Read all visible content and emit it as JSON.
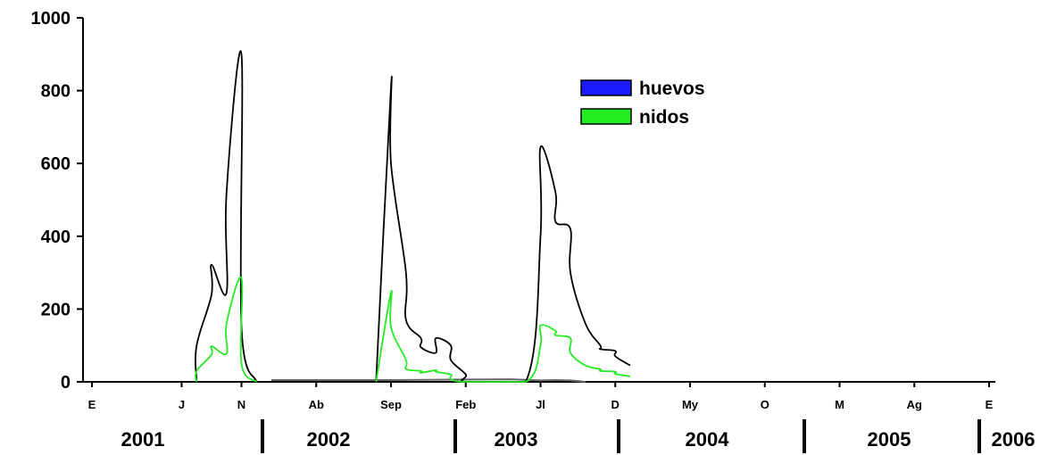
{
  "chart_data": {
    "type": "line",
    "title": "",
    "xlabel": "",
    "ylabel": "",
    "ylim": [
      0,
      1000
    ],
    "yticks": [
      0,
      200,
      400,
      600,
      800,
      1000
    ],
    "month_ticks": [
      {
        "label": "E",
        "date": "2001-01"
      },
      {
        "label": "J",
        "date": "2001-07"
      },
      {
        "label": "N",
        "date": "2001-11"
      },
      {
        "label": "Ab",
        "date": "2002-04"
      },
      {
        "label": "Sep",
        "date": "2002-09"
      },
      {
        "label": "Feb",
        "date": "2003-02"
      },
      {
        "label": "Jl",
        "date": "2003-07"
      },
      {
        "label": "D",
        "date": "2003-12"
      },
      {
        "label": "My",
        "date": "2004-05"
      },
      {
        "label": "O",
        "date": "2004-10"
      },
      {
        "label": "M",
        "date": "2005-03"
      },
      {
        "label": "Ag",
        "date": "2005-08"
      },
      {
        "label": "E",
        "date": "2006-01"
      }
    ],
    "years": [
      "2001",
      "2002",
      "2003",
      "2004",
      "2005",
      "2006"
    ],
    "grid": false,
    "legend_position": "top-center",
    "series": [
      {
        "name": "",
        "color": "#000000",
        "x": [
          "2001-08",
          "2001-08",
          "2001-09",
          "2001-09",
          "2001-10",
          "2001-10",
          "2001-11",
          "2001-11",
          "2001-12",
          "2002-08",
          "2002-09",
          "2002-09",
          "2002-10",
          "2002-10",
          "2002-11",
          "2002-11",
          "2002-12",
          "2002-12",
          "2003-01",
          "2003-01",
          "2003-02",
          "2003-02",
          "2003-06",
          "2003-07",
          "2003-07",
          "2003-08",
          "2003-08",
          "2003-09",
          "2003-09",
          "2003-10",
          "2003-11",
          "2003-11",
          "2003-12",
          "2003-12",
          "2004-01"
        ],
        "y": [
          0,
          100,
          240,
          322,
          245,
          520,
          900,
          150,
          0,
          0,
          810,
          600,
          300,
          170,
          120,
          95,
          80,
          120,
          100,
          60,
          20,
          0,
          0,
          400,
          645,
          520,
          440,
          420,
          300,
          160,
          100,
          90,
          85,
          70,
          45
        ]
      },
      {
        "name": "nidos",
        "color": "#22ee22",
        "x": [
          "2001-08",
          "2001-08",
          "2001-09",
          "2001-09",
          "2001-10",
          "2001-10",
          "2001-11",
          "2001-11",
          "2001-12",
          "2002-08",
          "2002-09",
          "2002-09",
          "2002-10",
          "2002-10",
          "2002-11",
          "2002-11",
          "2002-12",
          "2002-12",
          "2003-01",
          "2003-01",
          "2003-02",
          "2003-06",
          "2003-07",
          "2003-07",
          "2003-08",
          "2003-08",
          "2003-09",
          "2003-09",
          "2003-10",
          "2003-11",
          "2003-11",
          "2003-12",
          "2003-12",
          "2004-01"
        ],
        "y": [
          0,
          30,
          75,
          98,
          78,
          160,
          285,
          50,
          0,
          0,
          245,
          150,
          60,
          35,
          30,
          25,
          32,
          28,
          20,
          8,
          0,
          0,
          100,
          155,
          140,
          128,
          120,
          80,
          45,
          35,
          30,
          28,
          22,
          15
        ]
      },
      {
        "name": "huevos",
        "color": "#1a1aff",
        "x": [
          "2002-01",
          "2002-09",
          "2003-05",
          "2003-07",
          "2003-08",
          "2003-09",
          "2003-10"
        ],
        "y": [
          5,
          5,
          7,
          4,
          5,
          4,
          0
        ]
      }
    ],
    "legend": [
      {
        "label": "huevos",
        "color": "#1a1aff"
      },
      {
        "label": "nidos",
        "color": "#22ee22"
      }
    ]
  }
}
